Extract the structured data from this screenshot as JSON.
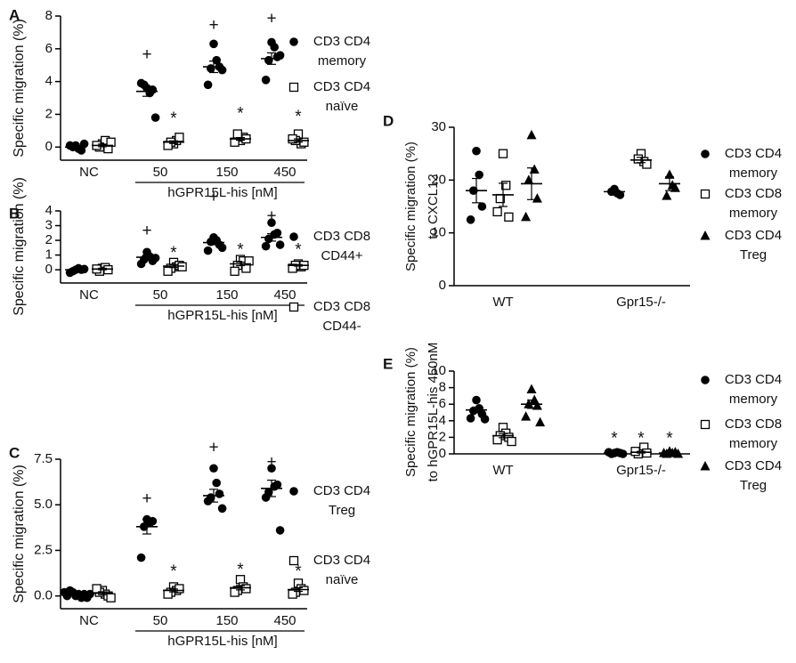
{
  "chart_data": [
    {
      "type": "scatter",
      "panel": "A",
      "ylabel": "Specific migration (%)",
      "xlabel": "hGPR15L-his [nM]",
      "categories": [
        "NC",
        "50",
        "150",
        "450"
      ],
      "ylim": [
        -0.8,
        8
      ],
      "yticks": [
        0,
        2,
        4,
        6,
        8
      ],
      "series": [
        {
          "name": "CD3 CD4 memory",
          "marker": "circle",
          "color": "#000000",
          "values": [
            [
              0.1,
              -0.1,
              0,
              -0.2,
              0.1,
              0.2
            ],
            [
              3.6,
              3.3,
              3.8,
              3.5,
              3.9,
              1.8
            ],
            [
              6.3,
              5.3,
              4.8,
              4.9,
              3.8,
              4.7
            ],
            [
              6.4,
              6.1,
              5.3,
              5.5,
              4.1,
              5.6
            ]
          ],
          "mean": [
            0,
            3.4,
            4.9,
            5.4
          ],
          "sem": [
            0.05,
            0.3,
            0.35,
            0.35
          ]
        },
        {
          "name": "CD3 CD4 naïve",
          "marker": "square",
          "color": "#000000",
          "values": [
            [
              0.2,
              0.4,
              0,
              -0.1,
              0.1,
              0.3
            ],
            [
              0.2,
              0.4,
              0.3,
              0.6,
              0.1
            ],
            [
              0.4,
              0.6,
              0.8,
              0.5,
              0.3
            ],
            [
              0.8,
              0.2,
              0.4,
              0.3,
              0.5
            ]
          ],
          "mean": [
            0.1,
            0.3,
            0.5,
            0.4
          ],
          "sem": [
            0.08,
            0.08,
            0.08,
            0.1
          ]
        }
      ],
      "annotations": [
        {
          "text": "+",
          "series": 0,
          "category": 1,
          "y": 5.6
        },
        {
          "text": "+",
          "series": 0,
          "category": 2,
          "y": 7.4
        },
        {
          "text": "+",
          "series": 0,
          "category": 3,
          "y": 7.8
        },
        {
          "text": "*",
          "series": 1,
          "category": 1,
          "y": 1.7
        },
        {
          "text": "*",
          "series": 1,
          "category": 2,
          "y": 2.0
        },
        {
          "text": "*",
          "series": 1,
          "category": 3,
          "y": 1.8
        }
      ]
    },
    {
      "type": "scatter",
      "panel": "B",
      "ylabel": "Specific migration (%)",
      "xlabel": "hGPR15L-his [nM]",
      "categories": [
        "NC",
        "50",
        "150",
        "450"
      ],
      "ylim": [
        -0.9,
        4
      ],
      "yticks": [
        0,
        1,
        2,
        3,
        4
      ],
      "series": [
        {
          "name": "CD3 CD8 CD44+",
          "marker": "circle",
          "color": "#000000",
          "values": [
            [
              0,
              0.1,
              -0.1,
              0,
              -0.2,
              0.05
            ],
            [
              1.2,
              0.9,
              0.7,
              0.6,
              0.4,
              0.8
            ],
            [
              2.2,
              2.0,
              1.9,
              1.7,
              1.3,
              1.5
            ],
            [
              3.2,
              2.4,
              2.1,
              2.5,
              1.6,
              1.7
            ]
          ],
          "mean": [
            0,
            0.85,
            1.85,
            2.2
          ],
          "sem": [
            0.05,
            0.15,
            0.15,
            0.25
          ]
        },
        {
          "name": "CD3 CD8 CD44-",
          "marker": "square",
          "color": "#000000",
          "values": [
            [
              0.1,
              0.15,
              -0.1,
              0,
              0.05
            ],
            [
              0.5,
              0.2,
              0.1,
              0.3,
              -0.1,
              0.2
            ],
            [
              0.7,
              0.6,
              0.3,
              0.1,
              -0.1,
              0.6
            ],
            [
              0.4,
              0.2,
              0.3,
              0.3,
              0.1
            ]
          ],
          "mean": [
            0.05,
            0.25,
            0.4,
            0.3
          ],
          "sem": [
            0.05,
            0.1,
            0.12,
            0.05
          ]
        }
      ],
      "annotations": [
        {
          "text": "+",
          "series": 0,
          "category": 1,
          "y": 2.6
        },
        {
          "text": "+",
          "series": 0,
          "category": 2,
          "y": 4.9
        },
        {
          "text": "+",
          "series": 0,
          "category": 3,
          "y": 3.6
        },
        {
          "text": "*",
          "series": 1,
          "category": 1,
          "y": 1.1
        },
        {
          "text": "*",
          "series": 1,
          "category": 2,
          "y": 1.3
        },
        {
          "text": "*",
          "series": 1,
          "category": 3,
          "y": 1.3
        }
      ]
    },
    {
      "type": "scatter",
      "panel": "C",
      "ylabel": "Specific migration (%)",
      "xlabel": "hGPR15L-his [nM]",
      "categories": [
        "NC",
        "50",
        "150",
        "450"
      ],
      "ylim": [
        -0.7,
        7.5
      ],
      "yticks": [
        {
          "value": 0,
          "label": "0.0"
        },
        2.5,
        {
          "value": 5,
          "label": "5.0"
        },
        7.5
      ],
      "series": [
        {
          "name": "CD3 CD4 Treg",
          "marker": "circle",
          "color": "#000000",
          "values": [
            [
              0,
              0.1,
              0.2,
              -0.1,
              0.3,
              0.1,
              0,
              -0.1,
              0.2,
              0.1
            ],
            [
              4.2,
              4.0,
              3.8,
              4.1,
              2.1
            ],
            [
              7.0,
              6.2,
              5.4,
              5.6,
              5.2,
              4.8
            ],
            [
              7.0,
              6.0,
              5.7,
              6.1,
              5.4,
              3.6
            ]
          ],
          "mean": [
            0.1,
            3.8,
            5.5,
            5.9
          ],
          "sem": [
            0.05,
            0.4,
            0.35,
            0.45
          ]
        },
        {
          "name": "CD3 CD4 naïve",
          "marker": "square",
          "color": "#000000",
          "values": [
            [
              0.3,
              0.1,
              0.2,
              0,
              0.4,
              -0.1
            ],
            [
              0.5,
              0.3,
              0.2,
              0.4,
              0.1
            ],
            [
              0.9,
              0.5,
              0.3,
              0.4,
              0.2
            ],
            [
              0.7,
              0.4,
              0.2,
              0.3,
              0.1
            ]
          ],
          "mean": [
            0.15,
            0.3,
            0.45,
            0.35
          ],
          "sem": [
            0.08,
            0.08,
            0.12,
            0.1
          ]
        }
      ],
      "annotations": [
        {
          "text": "+",
          "series": 0,
          "category": 1,
          "y": 5.3
        },
        {
          "text": "+",
          "series": 0,
          "category": 2,
          "y": 8.1
        },
        {
          "text": "+",
          "series": 0,
          "category": 3,
          "y": 7.3
        },
        {
          "text": "*",
          "series": 1,
          "category": 1,
          "y": 1.3
        },
        {
          "text": "*",
          "series": 1,
          "category": 2,
          "y": 1.4
        },
        {
          "text": "*",
          "series": 1,
          "category": 3,
          "y": 1.3
        }
      ]
    },
    {
      "type": "scatter",
      "panel": "D",
      "ylabel": [
        "Specific migration (%)",
        "to CXCL12"
      ],
      "categories": [
        "WT",
        "Gpr15-/-"
      ],
      "ylim": [
        0,
        30
      ],
      "yticks": [
        0,
        10,
        20,
        30
      ],
      "series": [
        {
          "name": "CD3 CD4 memory",
          "marker": "circle",
          "color": "#000000",
          "values": [
            [
              25.5,
              21,
              18,
              15,
              12.5
            ],
            [
              18.3,
              17.5,
              17.8,
              17.2
            ]
          ],
          "mean": [
            18,
            17.8
          ],
          "sem": [
            2.3,
            0.3
          ]
        },
        {
          "name": "CD3 CD8 memory",
          "marker": "square",
          "color": "#000000",
          "values": [
            [
              25,
              19,
              16.5,
              13,
              14
            ],
            [
              25,
              23.5,
              24,
              23
            ]
          ],
          "mean": [
            17.2,
            23.8
          ],
          "sem": [
            2.2,
            0.5
          ]
        },
        {
          "name": "CD3 CD4 Treg",
          "marker": "triangle",
          "color": "#000000",
          "values": [
            [
              28.5,
              22,
              20,
              16.5,
              13
            ],
            [
              21,
              19,
              17,
              18.5
            ]
          ],
          "mean": [
            19.3,
            19.3
          ],
          "sem": [
            3,
            1.3
          ]
        }
      ],
      "annotations": []
    },
    {
      "type": "scatter",
      "panel": "E",
      "ylabel": [
        "Specific migration (%)",
        "to hGPR15L-his 450nM"
      ],
      "categories": [
        "WT",
        "Gpr15-/-"
      ],
      "ylim": [
        0,
        10
      ],
      "yticks": [
        0,
        2,
        4,
        6,
        8,
        10
      ],
      "series": [
        {
          "name": "CD3 CD4 memory",
          "marker": "circle",
          "color": "#000000",
          "values": [
            [
              6.5,
              5.5,
              5.2,
              4.8,
              4.3,
              4.2
            ],
            [
              0.1,
              0.2,
              0,
              0.1,
              0.2,
              0
            ]
          ],
          "mean": [
            5.3,
            0.1
          ],
          "sem": [
            0.35,
            0.04
          ]
        },
        {
          "name": "CD3 CD8 memory",
          "marker": "square",
          "color": "#000000",
          "values": [
            [
              3.2,
              2.5,
              2.2,
              2,
              1.7,
              1.5
            ],
            [
              0.2,
              0.8,
              0,
              0.1,
              0.3
            ]
          ],
          "mean": [
            2.2,
            0.2
          ],
          "sem": [
            0.25,
            0.1
          ]
        },
        {
          "name": "CD3 CD4 Treg",
          "marker": "triangle",
          "color": "#000000",
          "values": [
            [
              7.8,
              6.5,
              6,
              5.8,
              4.5,
              3.8
            ],
            [
              0.3,
              0.1,
              0,
              0.2,
              0.1,
              0
            ]
          ],
          "mean": [
            6,
            0.1
          ],
          "sem": [
            0.5,
            0.05
          ]
        }
      ],
      "annotations": [
        {
          "text": "*",
          "series": 0,
          "category": 1,
          "y": 1.8
        },
        {
          "text": "*",
          "series": 1,
          "category": 1,
          "y": 1.8
        },
        {
          "text": "*",
          "series": 2,
          "category": 1,
          "y": 1.8
        }
      ]
    }
  ]
}
